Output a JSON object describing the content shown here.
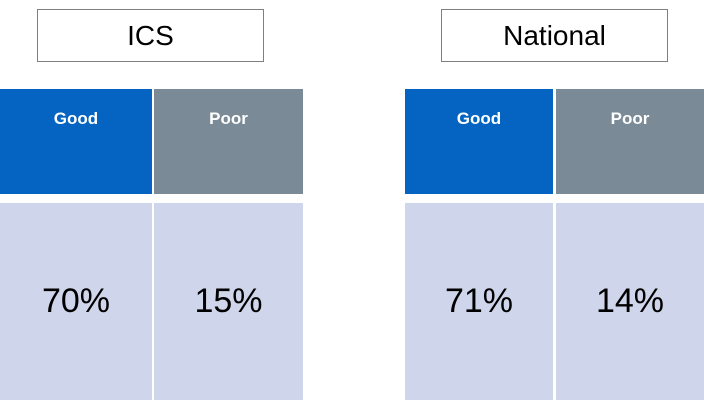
{
  "panels": [
    {
      "title": "ICS",
      "headers": [
        "Good",
        "Poor"
      ],
      "values": [
        "70%",
        "15%"
      ]
    },
    {
      "title": "National",
      "headers": [
        "Good",
        "Poor"
      ],
      "values": [
        "71%",
        "14%"
      ]
    }
  ]
}
